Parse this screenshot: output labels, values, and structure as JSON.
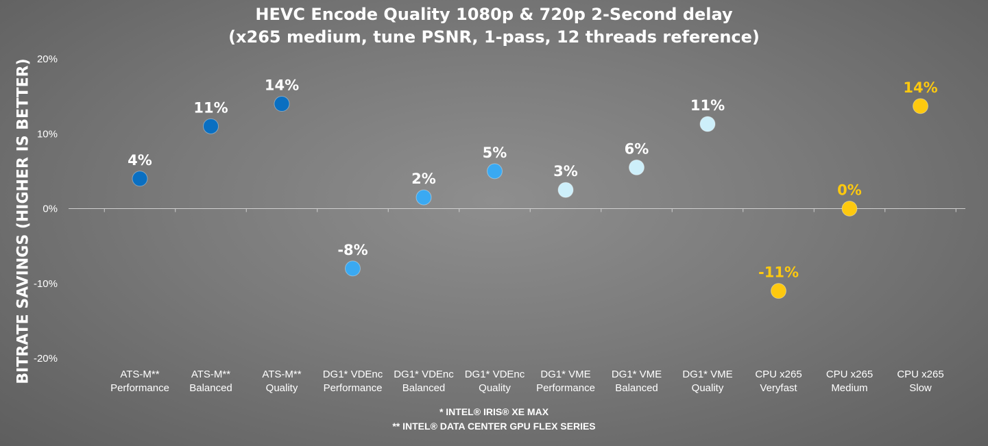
{
  "chart_data": {
    "type": "scatter",
    "title": "HEVC Encode Quality 1080p & 720p 2-Second delay",
    "subtitle": "(x265 medium, tune PSNR, 1-pass, 12 threads reference)",
    "ylabel": "BITRATE SAVINGS (HIGHER IS BETTER)",
    "xlabel": "",
    "ylim": [
      -20,
      20
    ],
    "yticks": [
      -20,
      -10,
      0,
      10,
      20
    ],
    "ytick_labels": [
      "-20%",
      "-10%",
      "0%",
      "10%",
      "20%"
    ],
    "grid": false,
    "categories": [
      [
        "ATS-M**",
        "Performance"
      ],
      [
        "ATS-M**",
        "Balanced"
      ],
      [
        "ATS-M**",
        "Quality"
      ],
      [
        "DG1* VDEnc",
        "Performance"
      ],
      [
        "DG1* VDEnc",
        "Balanced"
      ],
      [
        "DG1* VDEnc",
        "Quality"
      ],
      [
        "DG1* VME",
        "Performance"
      ],
      [
        "DG1* VME",
        "Balanced"
      ],
      [
        "DG1* VME",
        "Quality"
      ],
      [
        "CPU x265",
        "Veryfast"
      ],
      [
        "CPU x265",
        "Medium"
      ],
      [
        "CPU x265",
        "Slow"
      ]
    ],
    "points": [
      {
        "value": 4.0,
        "label": "4%",
        "color": "#0a6fc1"
      },
      {
        "value": 11.0,
        "label": "11%",
        "color": "#0a6fc1"
      },
      {
        "value": 14.0,
        "label": "14%",
        "color": "#0a6fc1"
      },
      {
        "value": -8.0,
        "label": "-8%",
        "color": "#3aa9f2"
      },
      {
        "value": 1.5,
        "label": "2%",
        "color": "#3aa9f2"
      },
      {
        "value": 5.0,
        "label": "5%",
        "color": "#3aa9f2"
      },
      {
        "value": 2.5,
        "label": "3%",
        "color": "#cdeffa"
      },
      {
        "value": 5.5,
        "label": "6%",
        "color": "#cdeffa"
      },
      {
        "value": 11.3,
        "label": "11%",
        "color": "#cdeffa"
      },
      {
        "value": -11.0,
        "label": "-11%",
        "color": "#fec90f"
      },
      {
        "value": 0.0,
        "label": "0%",
        "color": "#fec90f"
      },
      {
        "value": 13.7,
        "label": "14%",
        "color": "#fec90f"
      }
    ],
    "label_colors": {
      "default": "#ffffff",
      "cpu": "#fec90f"
    }
  },
  "footnotes": [
    "* INTEL® IRIS® XE MAX",
    "** INTEL® DATA CENTER GPU FLEX SERIES"
  ]
}
